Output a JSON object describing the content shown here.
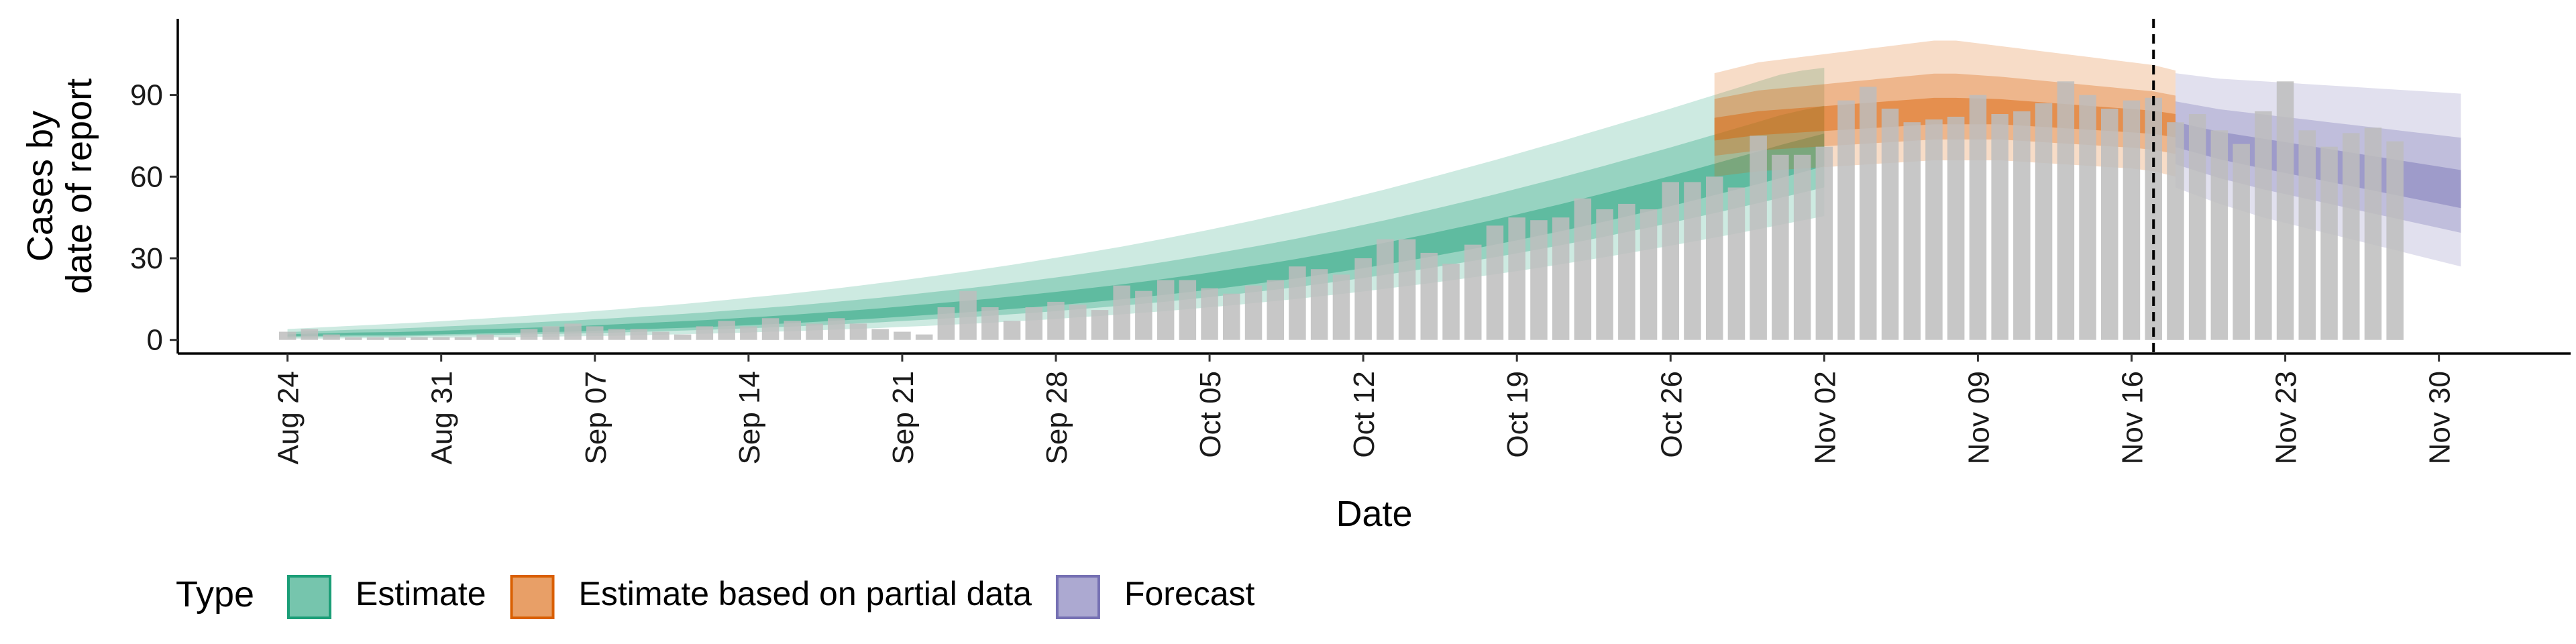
{
  "chart_data": {
    "type": "bar",
    "xlabel": "Date",
    "ylabel_lines": [
      "Cases by",
      "date of report"
    ],
    "ylim": [
      -5,
      118
    ],
    "y_ticks": [
      0,
      30,
      60,
      90
    ],
    "x_tick_labels": [
      "Aug 24",
      "Aug 31",
      "Sep 07",
      "Sep 14",
      "Sep 21",
      "Sep 28",
      "Oct 05",
      "Oct 12",
      "Oct 19",
      "Oct 26",
      "Nov 02",
      "Nov 09",
      "Nov 16",
      "Nov 23",
      "Nov 30"
    ],
    "x_tick_dates": [
      "2020-08-24",
      "2020-08-31",
      "2020-09-07",
      "2020-09-14",
      "2020-09-21",
      "2020-09-28",
      "2020-10-05",
      "2020-10-12",
      "2020-10-19",
      "2020-10-26",
      "2020-11-02",
      "2020-11-09",
      "2020-11-16",
      "2020-11-23",
      "2020-11-30"
    ],
    "xlim": [
      "2020-08-19",
      "2020-12-06"
    ],
    "vline_date": "2020-11-17",
    "vline_style": "dashed",
    "grid": false,
    "reported_cases": {
      "start_date": "2020-08-24",
      "color": "#bdbdbd",
      "values": [
        3,
        4,
        2,
        1,
        1,
        1,
        1,
        1,
        1,
        2,
        1,
        4,
        5,
        6,
        5,
        4,
        4,
        3,
        2,
        5,
        7,
        5,
        8,
        7,
        6,
        8,
        6,
        4,
        3,
        2,
        12,
        18,
        12,
        7,
        12,
        14,
        13,
        11,
        20,
        18,
        22,
        22,
        19,
        17,
        20,
        22,
        27,
        26,
        24,
        30,
        37,
        37,
        32,
        28,
        35,
        42,
        45,
        44,
        45,
        52,
        48,
        50,
        48,
        58,
        58,
        60,
        56,
        75,
        68,
        68,
        71,
        88,
        93,
        85,
        80,
        81,
        82,
        90,
        83,
        84,
        87,
        95,
        90,
        85,
        88,
        89,
        80,
        83,
        77,
        72,
        84,
        95,
        77,
        71,
        76,
        78,
        73
      ]
    },
    "series": [
      {
        "name": "Estimate",
        "color": "#1b9e77",
        "start_date": "2020-08-24",
        "median": [
          1.5,
          1.7,
          1.8,
          2,
          2,
          2,
          2.2,
          2.4,
          2.6,
          2.8,
          3,
          3.2,
          3.4,
          3.6,
          3.9,
          4.2,
          4.5,
          4.8,
          5.1,
          5.4,
          5.8,
          6.2,
          6.6,
          7,
          7.5,
          8,
          8.5,
          9,
          9.6,
          10.2,
          10.8,
          11.4,
          12,
          12.7,
          13.4,
          14.1,
          14.9,
          15.7,
          16.5,
          17.4,
          18.3,
          19.3,
          20.3,
          21.4,
          22.5,
          23.6,
          24.8,
          26.1,
          27.4,
          28.8,
          30.2,
          31.7,
          33.2,
          34.8,
          36.4,
          38.1,
          39.8,
          41.6,
          43.4,
          45.3,
          47.2,
          49.2,
          51.2,
          53.3,
          55.4,
          57.6,
          59.8,
          62,
          64.3,
          66.6,
          69
        ],
        "lower": [
          0.5,
          0.5,
          0.5,
          0.6,
          0.6,
          0.6,
          0.7,
          0.8,
          0.9,
          1,
          1,
          1.1,
          1.2,
          1.3,
          1.4,
          1.5,
          1.7,
          1.9,
          2.1,
          2.3,
          2.5,
          2.7,
          3,
          3.2,
          3.5,
          3.8,
          4.1,
          4.4,
          4.8,
          5.1,
          5.5,
          5.9,
          6.3,
          6.8,
          7.2,
          7.7,
          8.3,
          8.8,
          9.4,
          10,
          10.6,
          11.3,
          12,
          12.7,
          13.5,
          14.3,
          15.1,
          16,
          16.9,
          17.8,
          18.8,
          19.8,
          20.8,
          21.9,
          23,
          24.1,
          25.3,
          26.5,
          27.8,
          29.1,
          30.4,
          31.8,
          33.2,
          34.6,
          36.1,
          37.6,
          39.1,
          40.7,
          42.3,
          43.9,
          45.5
        ],
        "upper": [
          4,
          4.4,
          4.8,
          5.2,
          5.6,
          6,
          6.4,
          6.9,
          7.4,
          7.9,
          8.4,
          8.9,
          9.5,
          10,
          10.6,
          11.2,
          11.9,
          12.5,
          13.2,
          13.9,
          14.7,
          15.5,
          16.3,
          17.1,
          18,
          18.9,
          19.9,
          20.9,
          21.9,
          23,
          24.1,
          25.2,
          26.4,
          27.6,
          28.9,
          30.2,
          31.5,
          32.9,
          34.3,
          35.8,
          37.3,
          38.9,
          40.5,
          42.2,
          43.9,
          45.7,
          47.5,
          49.4,
          51.3,
          53.3,
          55.3,
          57.4,
          59.5,
          61.7,
          63.9,
          66.1,
          68.4,
          70.7,
          73,
          75.4,
          77.8,
          80.2,
          82.6,
          85,
          87.5,
          90,
          92.5,
          95,
          97.5,
          99,
          100
        ]
      },
      {
        "name": "Estimate based on partial data",
        "color": "#d95f02",
        "start_date": "2020-10-28",
        "median": [
          77,
          78,
          79,
          79.5,
          80,
          80.5,
          81,
          81.5,
          82,
          82.5,
          83,
          83,
          83,
          83,
          82.5,
          82,
          81.5,
          81,
          80.5,
          80,
          79.5,
          78.5
        ],
        "lower": [
          60,
          61,
          62,
          62.5,
          63,
          63.5,
          64,
          64.5,
          65,
          65.5,
          66,
          66,
          66,
          66,
          65.5,
          65,
          64.5,
          64,
          63.5,
          63,
          62,
          60
        ],
        "upper": [
          98,
          100,
          102,
          103,
          104,
          105,
          106,
          107,
          108,
          109,
          110,
          110,
          109,
          108,
          107,
          106,
          105,
          104,
          103,
          102,
          101,
          99
        ]
      },
      {
        "name": "Forecast",
        "color": "#7570b3",
        "start_date": "2020-11-18",
        "median": [
          75,
          73,
          71,
          69.5,
          68,
          66.5,
          65,
          63.5,
          62,
          60.5,
          59,
          57.5,
          56,
          54.5
        ],
        "lower": [
          56,
          53,
          50,
          47.5,
          45,
          43,
          41,
          39,
          37,
          35,
          33,
          31,
          29,
          27
        ],
        "upper": [
          98,
          97,
          96,
          95.5,
          95,
          94.5,
          94,
          93.5,
          93,
          92.5,
          92,
          91.5,
          91,
          90.5
        ]
      }
    ],
    "legend": {
      "title": "Type",
      "position": "bottom-left",
      "items": [
        {
          "label": "Estimate",
          "color": "#1b9e77"
        },
        {
          "label": "Estimate based on partial data",
          "color": "#d95f02"
        },
        {
          "label": "Forecast",
          "color": "#7570b3"
        }
      ]
    }
  }
}
